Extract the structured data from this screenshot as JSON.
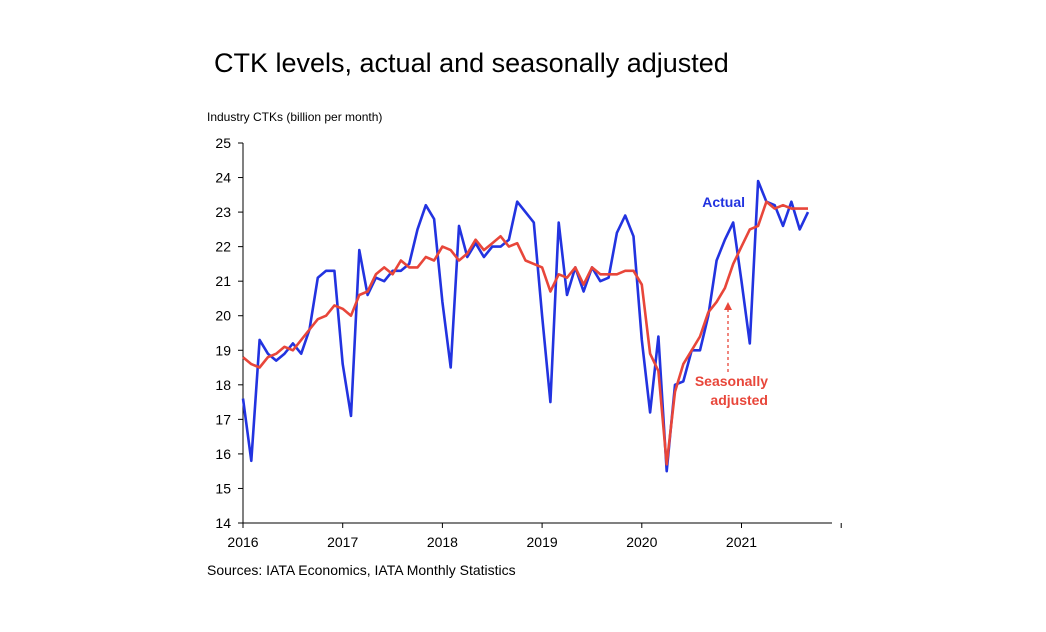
{
  "chart_data": {
    "type": "line",
    "title": "CTK levels, actual and seasonally adjusted",
    "ylabel": "Industry CTKs (billion per month)",
    "xlabel": "",
    "source": "Sources: IATA Economics, IATA Monthly Statistics",
    "ylim": [
      14,
      25
    ],
    "yticks": [
      14,
      15,
      16,
      17,
      18,
      19,
      20,
      21,
      22,
      23,
      24,
      25
    ],
    "xticks": [
      "2016",
      "2017",
      "2018",
      "2019",
      "2020",
      "2021"
    ],
    "x_start": "2016-01",
    "x_end": "2021-08",
    "series": [
      {
        "name": "Actual",
        "color": "#2233e0",
        "values": [
          17.6,
          15.8,
          19.3,
          18.9,
          18.7,
          18.9,
          19.2,
          18.9,
          19.6,
          21.1,
          21.3,
          21.3,
          18.6,
          17.1,
          21.9,
          20.6,
          21.1,
          21.0,
          21.3,
          21.3,
          21.5,
          22.5,
          23.2,
          22.8,
          20.4,
          18.5,
          22.6,
          21.7,
          22.1,
          21.7,
          22.0,
          22.0,
          22.2,
          23.3,
          23.0,
          22.7,
          20.0,
          17.5,
          22.7,
          20.6,
          21.4,
          20.7,
          21.4,
          21.0,
          21.1,
          22.4,
          22.9,
          22.3,
          19.3,
          17.2,
          19.4,
          15.5,
          18.0,
          18.1,
          19.0,
          19.0,
          20.0,
          21.6,
          22.2,
          22.7,
          21.0,
          19.2,
          23.9,
          23.3,
          23.2,
          22.6,
          23.3,
          22.5,
          23.0
        ]
      },
      {
        "name": "Seasonally adjusted",
        "color": "#e8463a",
        "values": [
          18.8,
          18.6,
          18.5,
          18.8,
          18.9,
          19.1,
          19.0,
          19.3,
          19.6,
          19.9,
          20.0,
          20.3,
          20.2,
          20.0,
          20.6,
          20.7,
          21.2,
          21.4,
          21.2,
          21.6,
          21.4,
          21.4,
          21.7,
          21.6,
          22.0,
          21.9,
          21.6,
          21.8,
          22.2,
          21.9,
          22.1,
          22.3,
          22.0,
          22.1,
          21.6,
          21.5,
          21.4,
          20.7,
          21.2,
          21.1,
          21.4,
          20.9,
          21.4,
          21.2,
          21.2,
          21.2,
          21.3,
          21.3,
          20.9,
          18.9,
          18.4,
          15.7,
          17.8,
          18.6,
          19.0,
          19.4,
          20.1,
          20.4,
          20.8,
          21.5,
          22.0,
          22.5,
          22.6,
          23.3,
          23.1,
          23.2,
          23.1,
          23.1,
          23.1
        ]
      }
    ],
    "annotations": {
      "actual_label": "Actual",
      "sa_label_line1": "Seasonally",
      "sa_label_line2": "adjusted"
    },
    "grid": false,
    "legend": "inline labels"
  }
}
